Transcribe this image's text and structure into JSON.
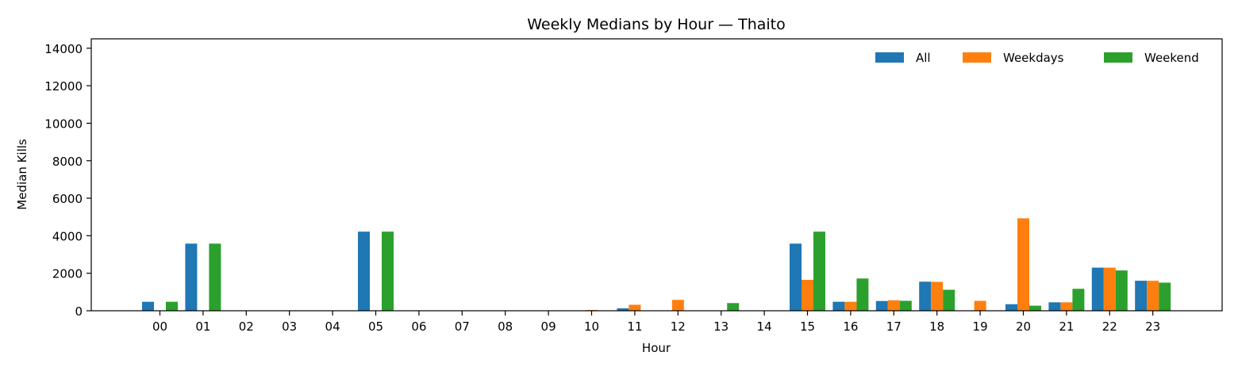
{
  "chart_data": {
    "type": "bar",
    "title": "Weekly Medians by Hour — Thaito",
    "xlabel": "Hour",
    "ylabel": "Median Kills",
    "ylim": [
      0,
      14500
    ],
    "yticks": [
      0,
      2000,
      4000,
      6000,
      8000,
      10000,
      12000,
      14000
    ],
    "legend_position": "top-right",
    "categories": [
      "00",
      "01",
      "02",
      "03",
      "04",
      "05",
      "06",
      "07",
      "08",
      "09",
      "10",
      "11",
      "12",
      "13",
      "14",
      "15",
      "16",
      "17",
      "18",
      "19",
      "20",
      "21",
      "22",
      "23"
    ],
    "series": [
      {
        "name": "All",
        "color": "#1f77b4",
        "values": [
          480,
          3580,
          0,
          0,
          0,
          4220,
          0,
          0,
          0,
          0,
          0,
          130,
          0,
          0,
          0,
          3580,
          480,
          520,
          1550,
          0,
          350,
          450,
          2300,
          1600
        ]
      },
      {
        "name": "Weekdays",
        "color": "#ff7f0e",
        "values": [
          0,
          0,
          0,
          0,
          0,
          0,
          0,
          0,
          0,
          0,
          40,
          320,
          580,
          0,
          0,
          1650,
          480,
          560,
          1540,
          530,
          4930,
          450,
          2300,
          1600
        ]
      },
      {
        "name": "Weekend",
        "color": "#2ca02c",
        "values": [
          480,
          3580,
          0,
          0,
          0,
          4220,
          0,
          0,
          0,
          0,
          0,
          0,
          0,
          410,
          0,
          4220,
          1720,
          530,
          1120,
          0,
          270,
          1170,
          2150,
          1500
        ]
      }
    ]
  }
}
